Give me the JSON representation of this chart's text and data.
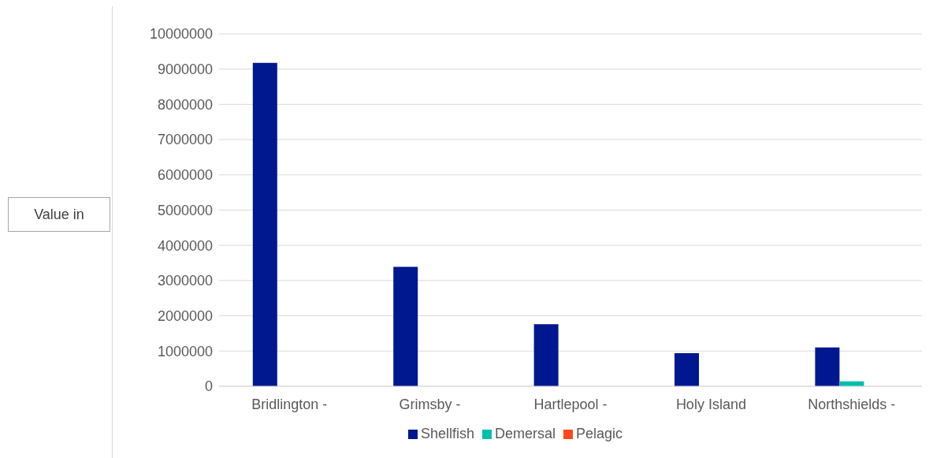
{
  "chart_data": {
    "type": "bar",
    "ylabel": "Value in",
    "categories": [
      "Bridlington -",
      "Grimsby -",
      "Hartlepool -",
      "Holy Island",
      "Northshields -"
    ],
    "series": [
      {
        "name": "Shellfish",
        "color": "#00188f",
        "values": [
          9180000,
          3390000,
          1760000,
          940000,
          1100000
        ]
      },
      {
        "name": "Demersal",
        "color": "#00bfb0",
        "values": [
          0,
          0,
          0,
          0,
          140000
        ]
      },
      {
        "name": "Pelagic",
        "color": "#ff4719",
        "values": [
          0,
          0,
          0,
          0,
          0
        ]
      }
    ],
    "ylim": [
      0,
      10000000
    ],
    "yticks": [
      0,
      1000000,
      2000000,
      3000000,
      4000000,
      5000000,
      6000000,
      7000000,
      8000000,
      9000000,
      10000000
    ],
    "grid": "y",
    "legend": "bottom"
  }
}
